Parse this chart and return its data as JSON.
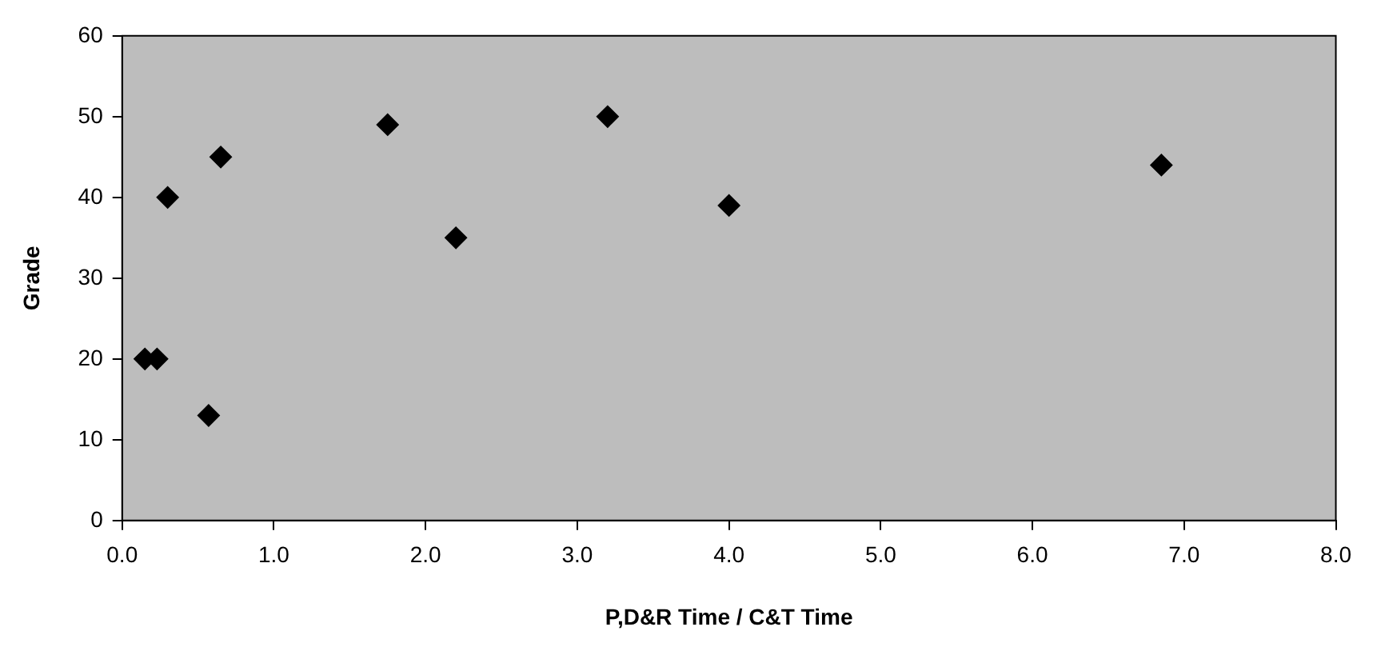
{
  "chart_data": {
    "type": "scatter",
    "xlabel": "P,D&R Time / C&T Time",
    "ylabel": "Grade",
    "x": [
      0.15,
      0.23,
      0.3,
      0.57,
      0.65,
      1.75,
      2.2,
      3.2,
      4.0,
      6.85
    ],
    "series": [
      {
        "color": "#000000",
        "values": [
          20,
          20,
          40,
          13,
          45,
          49,
          35,
          50,
          39,
          44
        ]
      }
    ],
    "xlim": [
      0,
      8
    ],
    "xticks": [
      {
        "value": 0,
        "label": "0.0"
      },
      {
        "value": 1,
        "label": "1.0"
      },
      {
        "value": 2,
        "label": "2.0"
      },
      {
        "value": 3,
        "label": "3.0"
      },
      {
        "value": 4,
        "label": "4.0"
      },
      {
        "value": 5,
        "label": "5.0"
      },
      {
        "value": 6,
        "label": "6.0"
      },
      {
        "value": 7,
        "label": "7.0"
      },
      {
        "value": 8,
        "label": "8.0"
      }
    ],
    "ylim": [
      0,
      60
    ],
    "yticks": [
      0,
      10,
      20,
      30,
      40,
      50,
      60
    ],
    "grid": false,
    "legend": false,
    "marker": "diamond"
  }
}
